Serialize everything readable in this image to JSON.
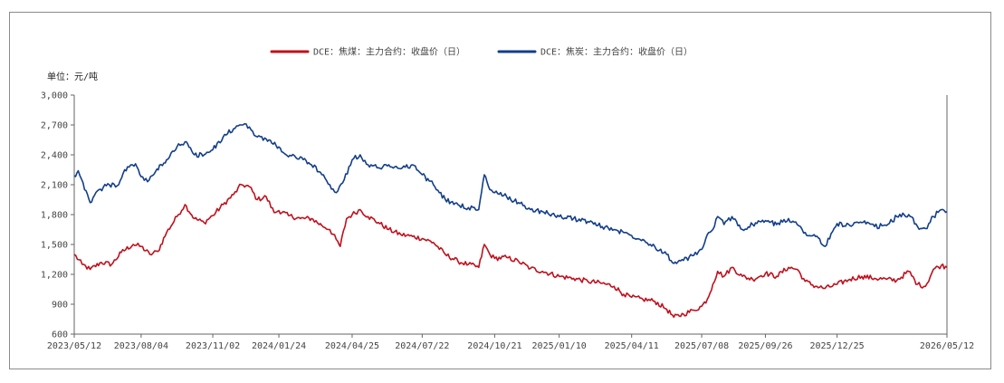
{
  "chart_data": {
    "type": "line",
    "unit_label": "单位：元/吨",
    "ylim": [
      600,
      3000
    ],
    "yticks": [
      600,
      900,
      1200,
      1500,
      1800,
      2100,
      2400,
      2700,
      3000
    ],
    "ytick_labels": [
      "600",
      "900",
      "1,200",
      "1,500",
      "1,800",
      "2,100",
      "2,400",
      "2,700",
      "3,000"
    ],
    "xlim": [
      "2023-05-12",
      "2026-05-12"
    ],
    "xticks": [
      "2023-05-12",
      "2023-08-04",
      "2023-11-02",
      "2024-01-24",
      "2024-04-25",
      "2024-07-22",
      "2024-10-21",
      "2025-01-10",
      "2025-04-11",
      "2025-07-08",
      "2025-09-26",
      "2025-12-25",
      "2026-05-12"
    ],
    "xtick_labels": [
      "2023/05/12",
      "2023/08/04",
      "2023/11/02",
      "2024/01/24",
      "2024/04/25",
      "2024/07/22",
      "2024/10/21",
      "2025/01/10",
      "2025/04/11",
      "2025/07/08",
      "2025/09/26",
      "2025/12/25",
      "2026/05/12"
    ],
    "legend_position": "top-center",
    "grid": false,
    "series": [
      {
        "name": "DCE：焦煤：主力合约：收盘价（日）",
        "color": "#c0101c",
        "points": [
          [
            "2023-05-12",
            1400
          ],
          [
            "2023-05-22",
            1300
          ],
          [
            "2023-06-01",
            1250
          ],
          [
            "2023-06-15",
            1320
          ],
          [
            "2023-06-28",
            1300
          ],
          [
            "2023-07-10",
            1420
          ],
          [
            "2023-07-25",
            1500
          ],
          [
            "2023-08-04",
            1480
          ],
          [
            "2023-08-15",
            1400
          ],
          [
            "2023-08-25",
            1430
          ],
          [
            "2023-09-05",
            1620
          ],
          [
            "2023-09-18",
            1780
          ],
          [
            "2023-09-28",
            1900
          ],
          [
            "2023-10-10",
            1760
          ],
          [
            "2023-10-22",
            1720
          ],
          [
            "2023-11-02",
            1790
          ],
          [
            "2023-11-15",
            1900
          ],
          [
            "2023-11-28",
            2000
          ],
          [
            "2023-12-08",
            2100
          ],
          [
            "2023-12-18",
            2080
          ],
          [
            "2023-12-28",
            1950
          ],
          [
            "2024-01-08",
            1980
          ],
          [
            "2024-01-18",
            1820
          ],
          [
            "2024-01-24",
            1840
          ],
          [
            "2024-02-05",
            1790
          ],
          [
            "2024-02-20",
            1760
          ],
          [
            "2024-03-05",
            1760
          ],
          [
            "2024-03-18",
            1690
          ],
          [
            "2024-03-28",
            1650
          ],
          [
            "2024-04-05",
            1550
          ],
          [
            "2024-04-10",
            1480
          ],
          [
            "2024-04-18",
            1760
          ],
          [
            "2024-04-25",
            1800
          ],
          [
            "2024-05-05",
            1850
          ],
          [
            "2024-05-15",
            1780
          ],
          [
            "2024-05-28",
            1720
          ],
          [
            "2024-06-10",
            1650
          ],
          [
            "2024-06-25",
            1600
          ],
          [
            "2024-07-10",
            1580
          ],
          [
            "2024-07-22",
            1560
          ],
          [
            "2024-08-05",
            1520
          ],
          [
            "2024-08-20",
            1400
          ],
          [
            "2024-09-05",
            1330
          ],
          [
            "2024-09-18",
            1300
          ],
          [
            "2024-10-01",
            1270
          ],
          [
            "2024-10-08",
            1500
          ],
          [
            "2024-10-15",
            1400
          ],
          [
            "2024-10-21",
            1360
          ],
          [
            "2024-11-05",
            1370
          ],
          [
            "2024-11-20",
            1330
          ],
          [
            "2024-12-05",
            1260
          ],
          [
            "2024-12-20",
            1230
          ],
          [
            "2025-01-10",
            1180
          ],
          [
            "2025-01-28",
            1160
          ],
          [
            "2025-02-15",
            1130
          ],
          [
            "2025-03-05",
            1110
          ],
          [
            "2025-03-20",
            1080
          ],
          [
            "2025-04-01",
            1000
          ],
          [
            "2025-04-11",
            970
          ],
          [
            "2025-04-25",
            950
          ],
          [
            "2025-05-10",
            930
          ],
          [
            "2025-05-25",
            850
          ],
          [
            "2025-06-03",
            770
          ],
          [
            "2025-06-15",
            800
          ],
          [
            "2025-06-28",
            840
          ],
          [
            "2025-07-08",
            880
          ],
          [
            "2025-07-15",
            950
          ],
          [
            "2025-07-22",
            1100
          ],
          [
            "2025-07-28",
            1230
          ],
          [
            "2025-08-05",
            1180
          ],
          [
            "2025-08-15",
            1270
          ],
          [
            "2025-08-28",
            1180
          ],
          [
            "2025-09-10",
            1150
          ],
          [
            "2025-09-26",
            1210
          ],
          [
            "2025-10-10",
            1180
          ],
          [
            "2025-10-25",
            1270
          ],
          [
            "2025-11-05",
            1250
          ],
          [
            "2025-11-15",
            1130
          ],
          [
            "2025-11-28",
            1080
          ],
          [
            "2025-12-10",
            1060
          ],
          [
            "2025-12-25",
            1100
          ],
          [
            "2026-01-10",
            1150
          ],
          [
            "2026-01-25",
            1180
          ],
          [
            "2026-02-10",
            1160
          ],
          [
            "2026-02-25",
            1150
          ],
          [
            "2026-03-10",
            1140
          ],
          [
            "2026-03-25",
            1230
          ],
          [
            "2026-04-05",
            1100
          ],
          [
            "2026-04-15",
            1080
          ],
          [
            "2026-04-25",
            1250
          ],
          [
            "2026-05-05",
            1290
          ],
          [
            "2026-05-12",
            1270
          ]
        ]
      },
      {
        "name": "DCE：焦炭：主力合约：收盘价（日）",
        "color": "#123e8a",
        "points": [
          [
            "2023-05-12",
            2190
          ],
          [
            "2023-05-17",
            2240
          ],
          [
            "2023-05-25",
            2050
          ],
          [
            "2023-06-01",
            1920
          ],
          [
            "2023-06-12",
            2050
          ],
          [
            "2023-06-25",
            2100
          ],
          [
            "2023-07-05",
            2090
          ],
          [
            "2023-07-18",
            2280
          ],
          [
            "2023-07-28",
            2310
          ],
          [
            "2023-08-04",
            2180
          ],
          [
            "2023-08-12",
            2130
          ],
          [
            "2023-08-22",
            2230
          ],
          [
            "2023-09-05",
            2350
          ],
          [
            "2023-09-18",
            2480
          ],
          [
            "2023-09-28",
            2530
          ],
          [
            "2023-10-10",
            2400
          ],
          [
            "2023-10-22",
            2400
          ],
          [
            "2023-11-02",
            2450
          ],
          [
            "2023-11-15",
            2580
          ],
          [
            "2023-11-28",
            2660
          ],
          [
            "2023-12-08",
            2700
          ],
          [
            "2023-12-18",
            2680
          ],
          [
            "2023-12-28",
            2580
          ],
          [
            "2024-01-08",
            2560
          ],
          [
            "2024-01-24",
            2480
          ],
          [
            "2024-02-05",
            2380
          ],
          [
            "2024-02-20",
            2380
          ],
          [
            "2024-03-05",
            2300
          ],
          [
            "2024-03-18",
            2200
          ],
          [
            "2024-03-28",
            2100
          ],
          [
            "2024-04-05",
            2020
          ],
          [
            "2024-04-15",
            2150
          ],
          [
            "2024-04-25",
            2350
          ],
          [
            "2024-05-05",
            2400
          ],
          [
            "2024-05-15",
            2300
          ],
          [
            "2024-05-28",
            2270
          ],
          [
            "2024-06-10",
            2300
          ],
          [
            "2024-06-25",
            2260
          ],
          [
            "2024-07-10",
            2300
          ],
          [
            "2024-07-22",
            2200
          ],
          [
            "2024-08-05",
            2100
          ],
          [
            "2024-08-20",
            1950
          ],
          [
            "2024-09-05",
            1900
          ],
          [
            "2024-09-18",
            1870
          ],
          [
            "2024-10-01",
            1850
          ],
          [
            "2024-10-08",
            2200
          ],
          [
            "2024-10-15",
            2050
          ],
          [
            "2024-10-21",
            2020
          ],
          [
            "2024-11-05",
            1980
          ],
          [
            "2024-11-20",
            1920
          ],
          [
            "2024-12-05",
            1850
          ],
          [
            "2024-12-20",
            1830
          ],
          [
            "2025-01-10",
            1780
          ],
          [
            "2025-01-28",
            1760
          ],
          [
            "2025-02-15",
            1730
          ],
          [
            "2025-03-05",
            1680
          ],
          [
            "2025-03-20",
            1650
          ],
          [
            "2025-04-01",
            1620
          ],
          [
            "2025-04-11",
            1590
          ],
          [
            "2025-04-25",
            1550
          ],
          [
            "2025-05-10",
            1480
          ],
          [
            "2025-05-25",
            1400
          ],
          [
            "2025-06-03",
            1310
          ],
          [
            "2025-06-15",
            1340
          ],
          [
            "2025-06-28",
            1390
          ],
          [
            "2025-07-08",
            1450
          ],
          [
            "2025-07-15",
            1600
          ],
          [
            "2025-07-22",
            1650
          ],
          [
            "2025-07-28",
            1780
          ],
          [
            "2025-08-05",
            1700
          ],
          [
            "2025-08-15",
            1780
          ],
          [
            "2025-08-28",
            1650
          ],
          [
            "2025-09-10",
            1700
          ],
          [
            "2025-09-26",
            1740
          ],
          [
            "2025-10-10",
            1700
          ],
          [
            "2025-10-25",
            1760
          ],
          [
            "2025-11-05",
            1700
          ],
          [
            "2025-11-15",
            1620
          ],
          [
            "2025-11-28",
            1580
          ],
          [
            "2025-12-10",
            1480
          ],
          [
            "2025-12-25",
            1710
          ],
          [
            "2026-01-10",
            1690
          ],
          [
            "2026-01-25",
            1720
          ],
          [
            "2026-02-10",
            1680
          ],
          [
            "2026-02-25",
            1690
          ],
          [
            "2026-03-10",
            1780
          ],
          [
            "2026-03-25",
            1800
          ],
          [
            "2026-04-05",
            1680
          ],
          [
            "2026-04-15",
            1660
          ],
          [
            "2026-04-25",
            1780
          ],
          [
            "2026-05-05",
            1850
          ],
          [
            "2026-05-12",
            1830
          ]
        ]
      }
    ]
  }
}
